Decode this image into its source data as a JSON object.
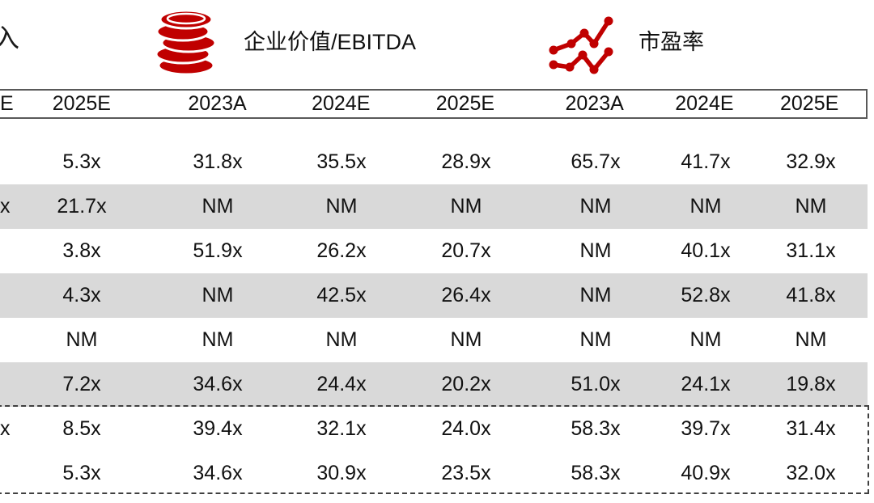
{
  "colors": {
    "accent_red": "#c00000",
    "row_shade": "#d9d9d9",
    "header_border": "#595959",
    "highlight_border": "#404040",
    "text": "#111111"
  },
  "legend": {
    "partial_left_text": "入",
    "items": [
      {
        "icon": "coin-stack-icon",
        "label": "企业价值/EBITDA"
      },
      {
        "icon": "line-chart-icon",
        "label": "市盈率"
      }
    ]
  },
  "chart_data": {
    "type": "table",
    "title": "",
    "metric_groups": [
      "企业价值/EBITDA",
      "市盈率"
    ],
    "columns": [
      "E",
      "2025E",
      "2023A",
      "2024E",
      "2025E",
      "2023A",
      "2024E",
      "2025E"
    ],
    "rows": [
      {
        "cells": [
          "",
          "5.3x",
          "31.8x",
          "35.5x",
          "28.9x",
          "65.7x",
          "41.7x",
          "32.9x"
        ],
        "shaded": false,
        "highlighted": false
      },
      {
        "cells": [
          "x",
          "21.7x",
          "NM",
          "NM",
          "NM",
          "NM",
          "NM",
          "NM"
        ],
        "shaded": true,
        "highlighted": false
      },
      {
        "cells": [
          "",
          "3.8x",
          "51.9x",
          "26.2x",
          "20.7x",
          "NM",
          "40.1x",
          "31.1x"
        ],
        "shaded": false,
        "highlighted": false
      },
      {
        "cells": [
          "",
          "4.3x",
          "NM",
          "42.5x",
          "26.4x",
          "NM",
          "52.8x",
          "41.8x"
        ],
        "shaded": true,
        "highlighted": false
      },
      {
        "cells": [
          "",
          "NM",
          "NM",
          "NM",
          "NM",
          "NM",
          "NM",
          "NM"
        ],
        "shaded": false,
        "highlighted": false
      },
      {
        "cells": [
          "",
          "7.2x",
          "34.6x",
          "24.4x",
          "20.2x",
          "51.0x",
          "24.1x",
          "19.8x"
        ],
        "shaded": true,
        "highlighted": false
      },
      {
        "cells": [
          "x",
          "8.5x",
          "39.4x",
          "32.1x",
          "24.0x",
          "58.3x",
          "39.7x",
          "31.4x"
        ],
        "shaded": false,
        "highlighted": true
      },
      {
        "cells": [
          "",
          "5.3x",
          "34.6x",
          "30.9x",
          "23.5x",
          "58.3x",
          "40.9x",
          "32.0x"
        ],
        "shaded": false,
        "highlighted": true
      }
    ]
  }
}
